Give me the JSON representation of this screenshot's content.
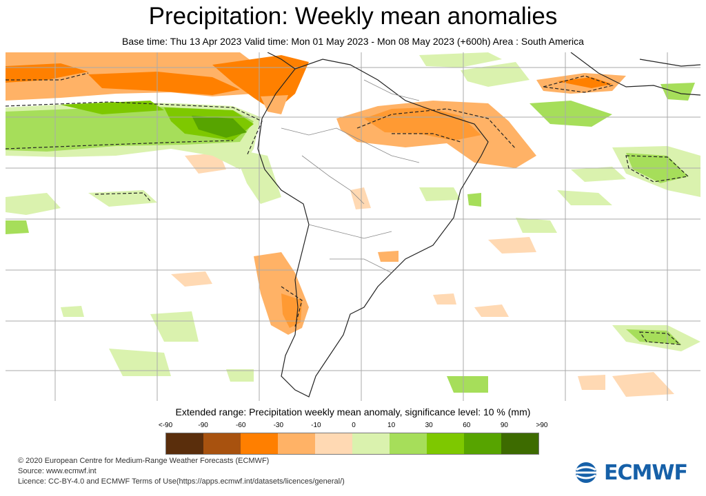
{
  "header": {
    "title": "Precipitation: Weekly mean anomalies",
    "subtitle": "Base time: Thu 13 Apr 2023 Valid time: Mon 01 May 2023 - Mon 08 May 2023 (+600h) Area : South America"
  },
  "legend": {
    "title": "Extended range: Precipitation weekly mean anomaly, significance level: 10 % (mm)",
    "ticks": [
      "<-90",
      "-90",
      "-60",
      "-30",
      "-10",
      "0",
      "10",
      "30",
      "60",
      "90",
      ">90"
    ],
    "colors": [
      "#5a2e0c",
      "#a8520f",
      "#ff7f00",
      "#ffb266",
      "#ffd9b3",
      "#daf2ae",
      "#a6de5a",
      "#7ec800",
      "#57a400",
      "#3d6b00"
    ]
  },
  "footer": {
    "line1": "© 2020 European Centre for Medium-Range Weather Forecasts (ECMWF)",
    "line2": "Source: www.ecmwf.int",
    "line3": "Licence: CC-BY-4.0 and ECMWF Terms of Use(https://apps.ecmwf.int/datasets/licences/general/)"
  },
  "logo": {
    "text": "ECMWF",
    "color": "#1660a8"
  },
  "map": {
    "area": "South America",
    "colors": {
      "strong_dry": "#ff8000",
      "dry": "#ffb266",
      "light_dry": "#ffd9b3",
      "light_wet": "#daf2ae",
      "wet": "#a6de5a",
      "strong_wet": "#7ec800",
      "very_wet": "#57a400",
      "grid": "#aaaaaa",
      "coast": "#222222"
    }
  }
}
